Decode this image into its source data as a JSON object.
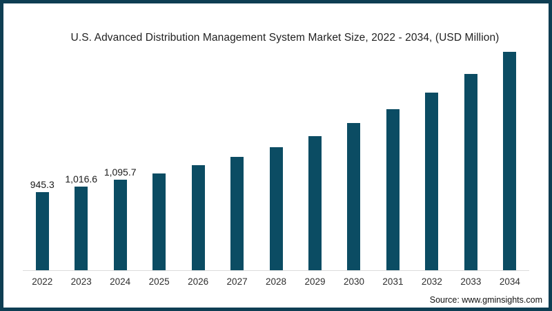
{
  "chart_data": {
    "type": "bar",
    "title": "U.S. Advanced Distribution Management System Market Size, 2022 - 2034, (USD Million)",
    "categories": [
      "2022",
      "2023",
      "2024",
      "2025",
      "2026",
      "2027",
      "2028",
      "2029",
      "2030",
      "2031",
      "2032",
      "2033",
      "2034"
    ],
    "values": [
      945.3,
      1016.6,
      1095.7,
      1175,
      1271,
      1376,
      1491,
      1628,
      1782,
      1949,
      2153,
      2379,
      2647
    ],
    "data_labels": [
      "945.3",
      "1,016.6",
      "1,095.7",
      "",
      "",
      "",
      "",
      "",
      "",
      "",
      "",
      "",
      ""
    ],
    "xlabel": "",
    "ylabel": "",
    "ylim": [
      0,
      2800
    ],
    "grid": false,
    "legend": false,
    "bar_color": "#0b4c63",
    "frame_color": "#0e3e53",
    "axis_line_color": "#dcdcdc"
  },
  "source": {
    "text": "Source: www.gminsights.com"
  }
}
